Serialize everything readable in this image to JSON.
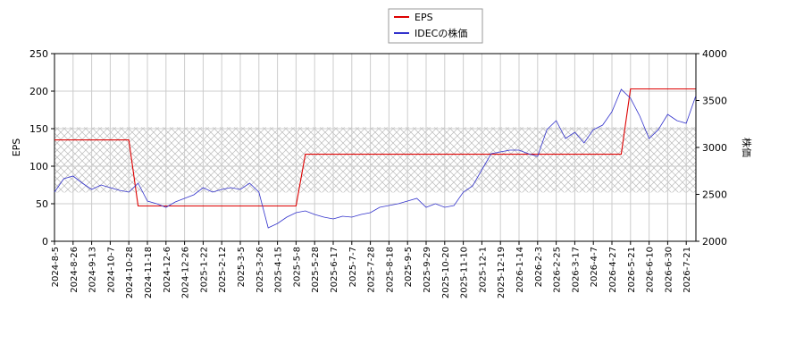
{
  "chart_data": {
    "type": "line",
    "legend_position": "top",
    "grid": true,
    "ylabel": "EPS",
    "y2label": "株価",
    "ylim": [
      0,
      250
    ],
    "yticks": [
      0,
      50,
      100,
      150,
      200,
      250
    ],
    "y2lim": [
      2000,
      4000
    ],
    "y2ticks": [
      2000,
      2500,
      3000,
      3500,
      4000
    ],
    "shaded_range": [
      65,
      152
    ],
    "categories": [
      "2024-8-5",
      null,
      "2024-8-26",
      null,
      "2024-9-13",
      null,
      "2024-10-7",
      null,
      "2024-10-28",
      null,
      "2024-11-18",
      null,
      "2024-12-6",
      null,
      "2024-12-26",
      null,
      "2025-1-22",
      null,
      "2025-2-12",
      null,
      "2025-3-5",
      null,
      "2025-3-26",
      null,
      "2025-4-15",
      null,
      "2025-5-8",
      null,
      "2025-5-28",
      null,
      "2025-6-17",
      null,
      "2025-7-7",
      null,
      "2025-7-28",
      null,
      "2025-8-18",
      null,
      "2025-9-5",
      null,
      "2025-9-29",
      null,
      "2025-10-20",
      null,
      "2025-11-10",
      null,
      "2025-12-1",
      null,
      "2025-12-19",
      null,
      "2026-1-14",
      null,
      "2026-2-3",
      null,
      "2026-2-25",
      null,
      "2026-3-17",
      null,
      "2026-4-7",
      null,
      "2026-4-27",
      null,
      "2026-5-21",
      null,
      "2026-6-10",
      null,
      "2026-6-30",
      null,
      "2026-7-21",
      null
    ],
    "series": [
      {
        "name": "EPS",
        "color": "#dd0000",
        "values": [
          135,
          135,
          135,
          135,
          135,
          135,
          135,
          135,
          135,
          47,
          47,
          47,
          47,
          47,
          47,
          47,
          47,
          47,
          47,
          47,
          47,
          47,
          47,
          47,
          47,
          47,
          47,
          116,
          116,
          116,
          116,
          116,
          116,
          116,
          116,
          116,
          116,
          116,
          116,
          116,
          116,
          116,
          116,
          116,
          116,
          116,
          116,
          116,
          116,
          116,
          116,
          116,
          116,
          116,
          116,
          116,
          116,
          116,
          116,
          116,
          116,
          116,
          203,
          203,
          203,
          203,
          203,
          203,
          203,
          203
        ]
      },
      {
        "name": "IDECの株価",
        "color": "#3333cc",
        "axis": "y2",
        "values": [
          2524,
          2667,
          2695,
          2619,
          2552,
          2600,
          2571,
          2543,
          2524,
          2619,
          2429,
          2400,
          2362,
          2419,
          2457,
          2495,
          2571,
          2524,
          2552,
          2571,
          2552,
          2619,
          2524,
          2143,
          2190,
          2257,
          2305,
          2324,
          2286,
          2257,
          2238,
          2267,
          2257,
          2286,
          2305,
          2362,
          2381,
          2400,
          2429,
          2457,
          2362,
          2400,
          2362,
          2381,
          2524,
          2590,
          2762,
          2933,
          2952,
          2971,
          2971,
          2933,
          2905,
          3190,
          3286,
          3095,
          3162,
          3048,
          3190,
          3238,
          3381,
          3619,
          3524,
          3333,
          3095,
          3190,
          3352,
          3286,
          3257,
          3543
        ]
      }
    ]
  }
}
